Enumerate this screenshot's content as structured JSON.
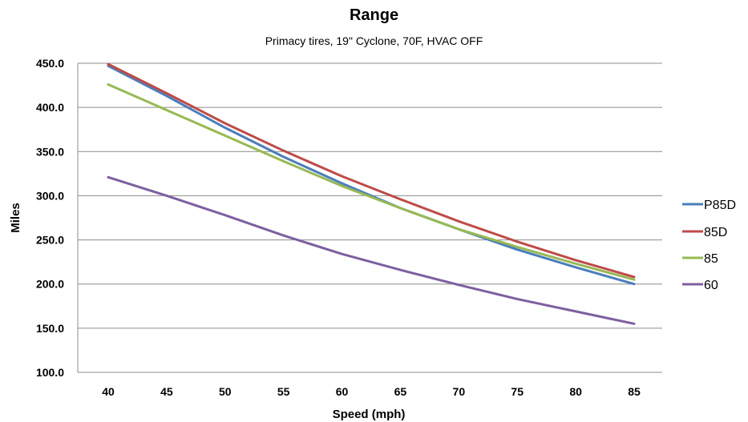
{
  "chart_data": {
    "type": "line",
    "title": "Range",
    "subtitle": "Primacy tires, 19\" Cyclone, 70F, HVAC OFF",
    "xlabel": "Speed (mph)",
    "ylabel": "Miles",
    "x": [
      40,
      45,
      50,
      55,
      60,
      65,
      70,
      75,
      80,
      85
    ],
    "xlim": [
      40,
      85
    ],
    "ylim": [
      100,
      450
    ],
    "y_ticks": [
      "450.0",
      "400.0",
      "350.0",
      "300.0",
      "250.0",
      "200.0",
      "150.0",
      "100.0"
    ],
    "x_ticks": [
      "40",
      "45",
      "50",
      "55",
      "60",
      "65",
      "70",
      "75",
      "80",
      "85"
    ],
    "grid": "horizontal",
    "legend_position": "right",
    "series": [
      {
        "name": "P85D",
        "color": "#4a7ebb",
        "values": [
          447,
          413,
          377,
          344,
          314,
          286,
          262,
          239,
          219,
          200
        ]
      },
      {
        "name": "85D",
        "color": "#be4b48",
        "values": [
          449,
          416,
          382,
          351,
          322,
          296,
          271,
          248,
          227,
          208
        ]
      },
      {
        "name": "85",
        "color": "#98b954",
        "values": [
          426,
          397,
          368,
          339,
          311,
          286,
          262,
          242,
          223,
          205
        ]
      },
      {
        "name": "60",
        "color": "#7d60a0",
        "values": [
          321,
          300,
          278,
          255,
          234,
          216,
          199,
          183,
          169,
          155
        ]
      }
    ]
  }
}
